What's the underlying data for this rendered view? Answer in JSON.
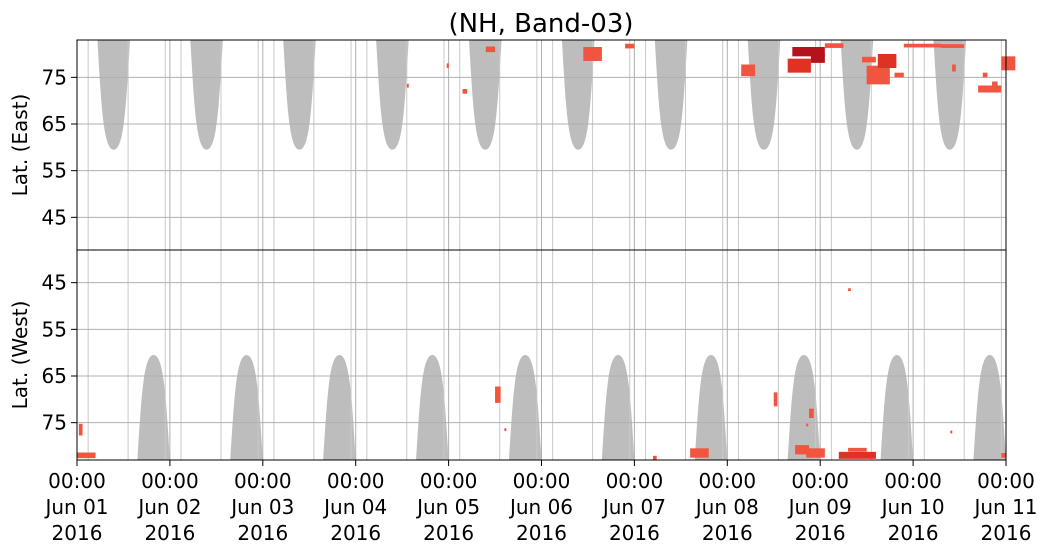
{
  "chart_data": {
    "type": "heatmap",
    "title": "(NH, Band-03)",
    "x_axis": {
      "range": [
        "2016-06-01 00:00",
        "2016-06-11 00:00"
      ],
      "ticks": [
        {
          "time": "00:00",
          "date": "Jun 01",
          "year": "2016"
        },
        {
          "time": "00:00",
          "date": "Jun 02",
          "year": "2016"
        },
        {
          "time": "00:00",
          "date": "Jun 03",
          "year": "2016"
        },
        {
          "time": "00:00",
          "date": "Jun 04",
          "year": "2016"
        },
        {
          "time": "00:00",
          "date": "Jun 05",
          "year": "2016"
        },
        {
          "time": "00:00",
          "date": "Jun 06",
          "year": "2016"
        },
        {
          "time": "00:00",
          "date": "Jun 07",
          "year": "2016"
        },
        {
          "time": "00:00",
          "date": "Jun 08",
          "year": "2016"
        },
        {
          "time": "00:00",
          "date": "Jun 09",
          "year": "2016"
        },
        {
          "time": "00:00",
          "date": "Jun 10",
          "year": "2016"
        },
        {
          "time": "00:00",
          "date": "Jun 11",
          "year": "2016"
        }
      ]
    },
    "panels": [
      {
        "name": "east",
        "ylabel": "Lat. (East)",
        "ylim": [
          38,
          83
        ],
        "yticks": [
          "45",
          "55",
          "65",
          "75"
        ],
        "inverted": false
      },
      {
        "name": "west",
        "ylabel": "Lat. (West)",
        "ylim": [
          83,
          38
        ],
        "yticks": [
          "75",
          "65",
          "55",
          "45"
        ],
        "inverted": true
      }
    ],
    "grid": true,
    "colors": {
      "no_data": "#bdbdbd",
      "low": "#f0553f",
      "mid": "#e03125",
      "high": "#b5121b",
      "grid": "#b0b0b0",
      "axis": "#000000"
    },
    "no_data_bands": {
      "east": [
        {
          "start_day": 0.22,
          "end_day": 0.57,
          "min_lat": 59.5,
          "max_lat": 83
        },
        {
          "start_day": 1.22,
          "end_day": 1.57,
          "min_lat": 59.5,
          "max_lat": 83
        },
        {
          "start_day": 2.22,
          "end_day": 2.57,
          "min_lat": 59.5,
          "max_lat": 83
        },
        {
          "start_day": 3.22,
          "end_day": 3.57,
          "min_lat": 59.5,
          "max_lat": 83
        },
        {
          "start_day": 4.22,
          "end_day": 4.57,
          "min_lat": 59.5,
          "max_lat": 83
        },
        {
          "start_day": 5.22,
          "end_day": 5.57,
          "min_lat": 59.5,
          "max_lat": 83
        },
        {
          "start_day": 6.22,
          "end_day": 6.57,
          "min_lat": 59.5,
          "max_lat": 83
        },
        {
          "start_day": 7.22,
          "end_day": 7.57,
          "min_lat": 59.5,
          "max_lat": 83
        },
        {
          "start_day": 8.22,
          "end_day": 8.57,
          "min_lat": 59.5,
          "max_lat": 83
        },
        {
          "start_day": 9.22,
          "end_day": 9.57,
          "min_lat": 59.5,
          "max_lat": 83
        }
      ],
      "west": [
        {
          "start_day": 0.65,
          "end_day": 1.0,
          "min_lat": 38,
          "max_lat": 60.5
        },
        {
          "start_day": 1.65,
          "end_day": 2.0,
          "min_lat": 38,
          "max_lat": 60.5
        },
        {
          "start_day": 2.65,
          "end_day": 3.0,
          "min_lat": 38,
          "max_lat": 60.5
        },
        {
          "start_day": 3.65,
          "end_day": 4.0,
          "min_lat": 38,
          "max_lat": 60.5
        },
        {
          "start_day": 4.65,
          "end_day": 5.0,
          "min_lat": 38,
          "max_lat": 60.5
        },
        {
          "start_day": 5.65,
          "end_day": 6.0,
          "min_lat": 38,
          "max_lat": 60.5
        },
        {
          "start_day": 6.65,
          "end_day": 7.0,
          "min_lat": 38,
          "max_lat": 60.5
        },
        {
          "start_day": 7.65,
          "end_day": 8.0,
          "min_lat": 38,
          "max_lat": 60.5
        },
        {
          "start_day": 8.65,
          "end_day": 9.0,
          "min_lat": 38,
          "max_lat": 60.5
        },
        {
          "start_day": 9.65,
          "end_day": 10.0,
          "min_lat": 38,
          "max_lat": 60.5
        }
      ]
    },
    "coverage_lines_day": [
      0.12,
      0.55,
      0.95,
      1.12,
      1.55,
      1.95,
      2.12,
      2.55,
      2.95,
      3.12,
      3.55,
      3.95,
      4.12,
      4.55,
      4.95,
      5.12,
      5.55,
      5.95,
      6.12,
      6.55,
      6.95,
      7.12,
      7.55,
      7.95,
      8.12,
      8.55,
      8.95,
      9.12,
      9.55,
      9.95
    ],
    "echo_points": [
      {
        "panel": "west",
        "day": 0.0,
        "lat": 82.0,
        "level": "low",
        "dd": 0.2,
        "dlat": 1.2
      },
      {
        "panel": "west",
        "day": 0.02,
        "lat": 76.5,
        "level": "low",
        "dd": 0.04,
        "dlat": 2.5
      },
      {
        "panel": "east",
        "day": 3.55,
        "lat": 73.2,
        "level": "low",
        "dd": 0.02,
        "dlat": 0.8
      },
      {
        "panel": "east",
        "day": 3.98,
        "lat": 77.5,
        "level": "low",
        "dd": 0.02,
        "dlat": 1.0
      },
      {
        "panel": "east",
        "day": 4.15,
        "lat": 72.0,
        "level": "low",
        "dd": 0.05,
        "dlat": 1.0
      },
      {
        "panel": "east",
        "day": 4.4,
        "lat": 81.0,
        "level": "low",
        "dd": 0.1,
        "dlat": 1.2
      },
      {
        "panel": "east",
        "day": 5.45,
        "lat": 80.0,
        "level": "low",
        "dd": 0.2,
        "dlat": 3.0
      },
      {
        "panel": "east",
        "day": 5.9,
        "lat": 81.7,
        "level": "low",
        "dd": 0.1,
        "dlat": 1.0
      },
      {
        "panel": "west",
        "day": 4.5,
        "lat": 69.0,
        "level": "low",
        "dd": 0.06,
        "dlat": 3.5
      },
      {
        "panel": "west",
        "day": 4.6,
        "lat": 76.5,
        "level": "low",
        "dd": 0.02,
        "dlat": 0.6
      },
      {
        "panel": "west",
        "day": 6.6,
        "lat": 81.5,
        "level": "low",
        "dd": 0.2,
        "dlat": 2.0
      },
      {
        "panel": "west",
        "day": 6.2,
        "lat": 82.5,
        "level": "low",
        "dd": 0.04,
        "dlat": 0.8
      },
      {
        "panel": "west",
        "day": 7.5,
        "lat": 70.0,
        "level": "low",
        "dd": 0.04,
        "dlat": 3.0
      },
      {
        "panel": "west",
        "day": 7.85,
        "lat": 81.5,
        "level": "low",
        "dd": 0.2,
        "dlat": 2.0
      },
      {
        "panel": "west",
        "day": 7.88,
        "lat": 73.0,
        "level": "low",
        "dd": 0.05,
        "dlat": 2.0
      },
      {
        "panel": "east",
        "day": 7.15,
        "lat": 76.5,
        "level": "low",
        "dd": 0.15,
        "dlat": 2.5
      },
      {
        "panel": "east",
        "day": 7.65,
        "lat": 77.5,
        "level": "mid",
        "dd": 0.25,
        "dlat": 3.0
      },
      {
        "panel": "east",
        "day": 7.7,
        "lat": 80.5,
        "level": "high",
        "dd": 0.35,
        "dlat": 2.0
      },
      {
        "panel": "east",
        "day": 7.9,
        "lat": 79.0,
        "level": "high",
        "dd": 0.15,
        "dlat": 1.8
      },
      {
        "panel": "east",
        "day": 8.05,
        "lat": 81.8,
        "level": "low",
        "dd": 0.2,
        "dlat": 1.0
      },
      {
        "panel": "west",
        "day": 7.73,
        "lat": 80.8,
        "level": "low",
        "dd": 0.15,
        "dlat": 2.0
      },
      {
        "panel": "west",
        "day": 7.85,
        "lat": 75.5,
        "level": "low",
        "dd": 0.02,
        "dlat": 0.6
      },
      {
        "panel": "east",
        "day": 8.45,
        "lat": 78.8,
        "level": "low",
        "dd": 0.15,
        "dlat": 1.2
      },
      {
        "panel": "east",
        "day": 8.5,
        "lat": 75.5,
        "level": "low",
        "dd": 0.25,
        "dlat": 4.0
      },
      {
        "panel": "east",
        "day": 8.62,
        "lat": 78.5,
        "level": "mid",
        "dd": 0.2,
        "dlat": 3.0
      },
      {
        "panel": "east",
        "day": 8.8,
        "lat": 75.5,
        "level": "low",
        "dd": 0.1,
        "dlat": 1.0
      },
      {
        "panel": "west",
        "day": 8.2,
        "lat": 82.0,
        "level": "mid",
        "dd": 0.4,
        "dlat": 1.5
      },
      {
        "panel": "west",
        "day": 8.3,
        "lat": 80.8,
        "level": "low",
        "dd": 0.2,
        "dlat": 0.8
      },
      {
        "panel": "east",
        "day": 8.9,
        "lat": 81.8,
        "level": "low",
        "dd": 0.4,
        "dlat": 0.8
      },
      {
        "panel": "east",
        "day": 9.3,
        "lat": 81.7,
        "level": "low",
        "dd": 0.25,
        "dlat": 0.8
      },
      {
        "panel": "east",
        "day": 9.42,
        "lat": 77.0,
        "level": "low",
        "dd": 0.04,
        "dlat": 1.5
      },
      {
        "panel": "east",
        "day": 9.7,
        "lat": 72.5,
        "level": "low",
        "dd": 0.25,
        "dlat": 1.5
      },
      {
        "panel": "east",
        "day": 9.75,
        "lat": 75.5,
        "level": "low",
        "dd": 0.05,
        "dlat": 1.0
      },
      {
        "panel": "east",
        "day": 9.95,
        "lat": 78.0,
        "level": "low",
        "dd": 0.15,
        "dlat": 3.0
      },
      {
        "panel": "east",
        "day": 9.85,
        "lat": 73.5,
        "level": "low",
        "dd": 0.06,
        "dlat": 1.2
      },
      {
        "panel": "west",
        "day": 9.95,
        "lat": 82.0,
        "level": "low",
        "dd": 0.05,
        "dlat": 1.0
      },
      {
        "panel": "west",
        "day": 8.3,
        "lat": 46.5,
        "level": "low",
        "dd": 0.03,
        "dlat": 0.6
      },
      {
        "panel": "west",
        "day": 9.4,
        "lat": 77.0,
        "level": "low",
        "dd": 0.02,
        "dlat": 0.6
      }
    ]
  }
}
